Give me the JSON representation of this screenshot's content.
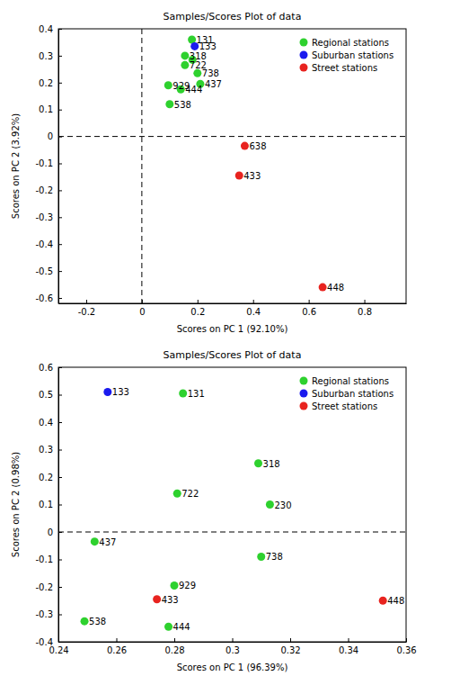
{
  "chart_data": [
    {
      "type": "scatter",
      "title": "Samples/Scores Plot of data",
      "x_label": "Scores on PC 1 (92.10%)",
      "y_label": "Scores on PC 2 (3.92%)",
      "xlim": [
        -0.3,
        0.95
      ],
      "ylim": [
        -0.62,
        0.4
      ],
      "xticks": [
        -0.2,
        0,
        0.2,
        0.4,
        0.6,
        0.8
      ],
      "yticks": [
        -0.6,
        -0.5,
        -0.4,
        -0.3,
        -0.2,
        -0.1,
        0,
        0.1,
        0.2,
        0.3,
        0.4
      ],
      "x_lines": [
        0
      ],
      "y_lines": [
        0
      ],
      "legend": "upper right",
      "series": [
        {
          "name": "Regional stations",
          "color": "#2ed12e",
          "marker": "circle",
          "labels": [
            "131",
            "318",
            null,
            "722",
            "738",
            "437",
            "929",
            "444",
            "538"
          ],
          "x": [
            0.18,
            0.155,
            0.182,
            0.155,
            0.2,
            0.21,
            0.095,
            0.14,
            0.1
          ],
          "values": [
            0.36,
            0.3,
            0.285,
            0.265,
            0.235,
            0.195,
            0.19,
            0.175,
            0.12
          ]
        },
        {
          "name": "Suburban stations",
          "color": "#1a1aee",
          "marker": "circle",
          "labels": [
            "133"
          ],
          "x": [
            0.19
          ],
          "values": [
            0.335
          ]
        },
        {
          "name": "Street stations",
          "color": "#e8231f",
          "marker": "circle",
          "labels": [
            "638",
            "433",
            "448"
          ],
          "x": [
            0.37,
            0.35,
            0.65
          ],
          "values": [
            -0.035,
            -0.145,
            -0.56
          ]
        }
      ]
    },
    {
      "type": "scatter",
      "title": "Samples/Scores Plot of data",
      "x_label": "Scores on PC 1 (96.39%)",
      "y_label": "Scores on PC 2 (0.98%)",
      "xlim": [
        0.24,
        0.36
      ],
      "ylim": [
        -0.4,
        0.6
      ],
      "xticks": [
        0.24,
        0.26,
        0.28,
        0.3,
        0.32,
        0.34,
        0.36
      ],
      "yticks": [
        -0.4,
        -0.3,
        -0.2,
        -0.1,
        0,
        0.1,
        0.2,
        0.3,
        0.4,
        0.5,
        0.6
      ],
      "y_lines": [
        0
      ],
      "legend": "upper right",
      "series": [
        {
          "name": "Regional stations",
          "color": "#2ed12e",
          "marker": "circle",
          "labels": [
            "131",
            "318",
            "230",
            "722",
            "437",
            "738",
            "929",
            "538",
            "444"
          ],
          "x": [
            0.283,
            0.309,
            0.313,
            0.281,
            0.2525,
            0.31,
            0.28,
            0.249,
            0.278
          ],
          "values": [
            0.505,
            0.25,
            0.1,
            0.14,
            -0.035,
            -0.09,
            -0.195,
            -0.325,
            -0.345
          ]
        },
        {
          "name": "Suburban stations",
          "color": "#1a1aee",
          "marker": "circle",
          "labels": [
            "133"
          ],
          "x": [
            0.257
          ],
          "values": [
            0.51
          ]
        },
        {
          "name": "Street stations",
          "color": "#e8231f",
          "marker": "circle",
          "labels": [
            "433",
            "448"
          ],
          "x": [
            0.274,
            0.352
          ],
          "values": [
            -0.245,
            -0.25
          ]
        }
      ]
    }
  ]
}
